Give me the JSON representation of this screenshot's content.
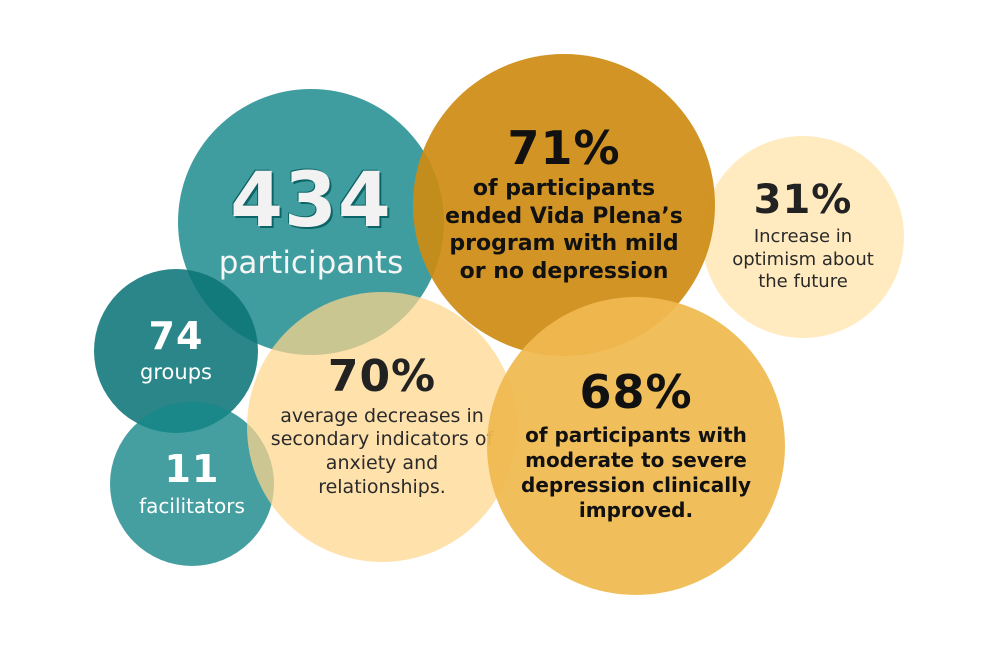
{
  "stats": {
    "participants": {
      "value": "434",
      "label": "participants"
    },
    "groups": {
      "value": "74",
      "label": "groups"
    },
    "facilitators": {
      "value": "11",
      "label": "facilitators"
    },
    "ended_mild": {
      "value": "71%",
      "label": "of participants ended Vida Plena’s program with mild or no depression"
    },
    "optimism": {
      "value": "31%",
      "label": "Increase in optimism about the future"
    },
    "secondary": {
      "value": "70%",
      "label": "average decreases in secondary indicators of anxiety and relationships."
    },
    "improved": {
      "value": "68%",
      "label": "of participants with moderate to severe depression clinically improved."
    }
  },
  "colors": {
    "teal": "#16878A",
    "dark_teal": "#0C7578",
    "gold": "#CD8C14",
    "light_gold": "#F0B950",
    "cream": "#FFE4AA",
    "peach": "#FFD68C"
  }
}
